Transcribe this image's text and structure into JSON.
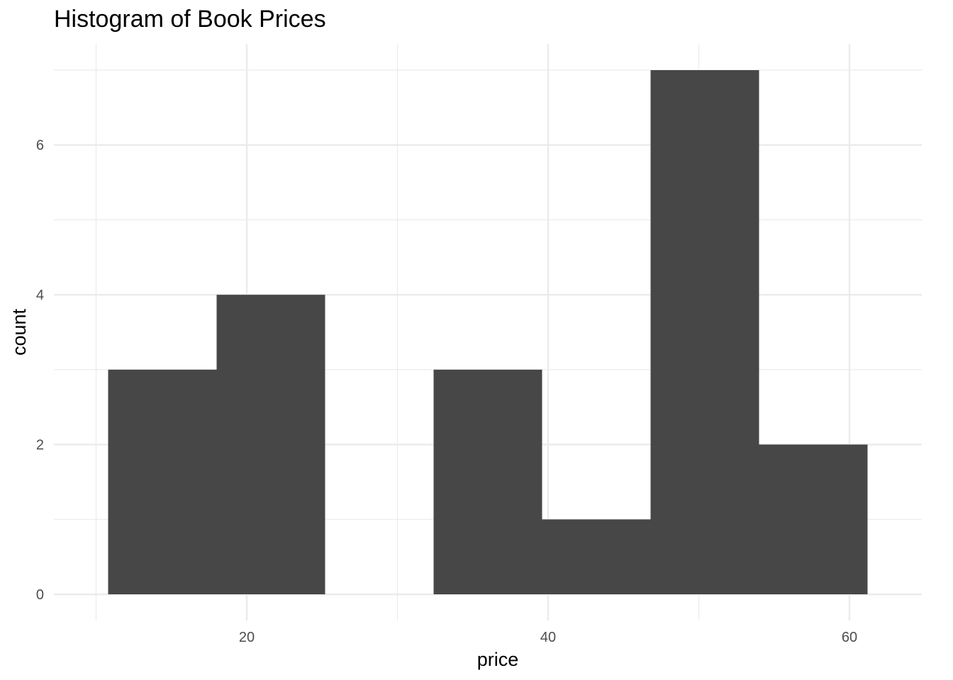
{
  "chart_data": {
    "type": "bar",
    "subtype": "histogram",
    "title": "Histogram of Book Prices",
    "xlabel": "price",
    "ylabel": "count",
    "bins": [
      {
        "x0": 10.8,
        "x1": 18.0,
        "count": 3
      },
      {
        "x0": 18.0,
        "x1": 25.2,
        "count": 4
      },
      {
        "x0": 25.2,
        "x1": 32.4,
        "count": 0
      },
      {
        "x0": 32.4,
        "x1": 39.6,
        "count": 3
      },
      {
        "x0": 39.6,
        "x1": 46.8,
        "count": 1
      },
      {
        "x0": 46.8,
        "x1": 54.0,
        "count": 7
      },
      {
        "x0": 54.0,
        "x1": 61.2,
        "count": 2
      }
    ],
    "xlim": [
      7.2,
      64.8
    ],
    "ylim": [
      -0.35,
      7.35
    ],
    "x_ticks": [
      20,
      40,
      60
    ],
    "x_minor_ticks": [
      10,
      30,
      50
    ],
    "y_ticks": [
      0,
      2,
      4,
      6
    ],
    "y_minor_ticks": [
      1,
      3,
      5,
      7
    ],
    "grid": true,
    "bar_color": "#474747",
    "grid_color": "#ebebeb",
    "background": "#ffffff"
  }
}
